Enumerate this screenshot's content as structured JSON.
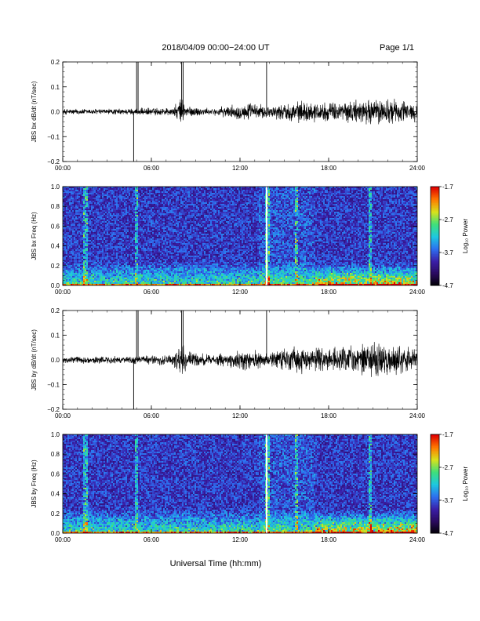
{
  "header": {
    "title": "2018/04/09   00:00−24:00 UT",
    "page": "Page 1/1"
  },
  "xaxis_label": "Universal Time (hh:mm)",
  "colors": {
    "trace": "#000000",
    "gap_line": "#ffffff",
    "colormap": [
      "#000000",
      "#2a0a5e",
      "#3a1fa8",
      "#2d6ff0",
      "#1ec8e0",
      "#3fe07a",
      "#d8e21c",
      "#ff7a00",
      "#e00000"
    ]
  },
  "colorbar": {
    "label": "Log₁₀ Power",
    "ticks": [
      "-1.7",
      "-2.7",
      "-3.7",
      "-4.7"
    ],
    "range": [
      -4.7,
      -1.7
    ]
  },
  "chart_data": [
    {
      "type": "line",
      "ylabel": "JBS bx dB/dt (nT/sec)",
      "ylim": [
        -0.2,
        0.2
      ],
      "yticks": [
        "0.2",
        "0.1",
        "0.0",
        "−0.1",
        "−0.2"
      ],
      "xlim": [
        0,
        24
      ],
      "xticks": [
        "00:00",
        "06:00",
        "12:00",
        "18:00",
        "24:00"
      ],
      "spikes_hours": [
        4.8,
        5.0,
        5.1,
        8.05,
        8.15,
        13.8
      ],
      "envelope": {
        "hours": [
          0,
          4,
          7.5,
          8,
          8.5,
          10,
          12.5,
          14,
          16,
          18,
          20,
          22,
          24
        ],
        "amplitude": [
          0.01,
          0.01,
          0.015,
          0.045,
          0.02,
          0.01,
          0.03,
          0.02,
          0.035,
          0.03,
          0.04,
          0.045,
          0.03
        ]
      }
    },
    {
      "type": "heatmap",
      "ylabel": "JBS bx Freq (Hz)",
      "ylim": [
        0.0,
        1.0
      ],
      "yticks": [
        "1.0",
        "0.8",
        "0.6",
        "0.4",
        "0.2",
        "0.0"
      ],
      "xlim": [
        0,
        24
      ],
      "xticks": [
        "00:00",
        "06:00",
        "12:00",
        "18:00",
        "24:00"
      ],
      "vertical_lines_hours": [
        1.5,
        4.9,
        13.8,
        15.8,
        20.8
      ],
      "gap_hour": 13.8
    },
    {
      "type": "line",
      "ylabel": "JBS by dB/dt (nT/sec)",
      "ylim": [
        -0.2,
        0.2
      ],
      "yticks": [
        "0.2",
        "0.1",
        "0.0",
        "−0.1",
        "−0.2"
      ],
      "xlim": [
        0,
        24
      ],
      "xticks": [
        "00:00",
        "06:00",
        "12:00",
        "18:00",
        "24:00"
      ],
      "spikes_hours": [
        4.8,
        5.0,
        5.1,
        8.05,
        8.15,
        13.8
      ],
      "envelope": {
        "hours": [
          0,
          4,
          7.5,
          8,
          8.5,
          10,
          12.5,
          14,
          16,
          18,
          20,
          22,
          24
        ],
        "amplitude": [
          0.012,
          0.012,
          0.02,
          0.06,
          0.03,
          0.015,
          0.035,
          0.025,
          0.045,
          0.04,
          0.05,
          0.06,
          0.035
        ]
      }
    },
    {
      "type": "heatmap",
      "ylabel": "JBS by Freq (Hz)",
      "ylim": [
        0.0,
        1.0
      ],
      "yticks": [
        "1.0",
        "0.8",
        "0.6",
        "0.4",
        "0.2",
        "0.0"
      ],
      "xlim": [
        0,
        24
      ],
      "xticks": [
        "00:00",
        "06:00",
        "12:00",
        "18:00",
        "24:00"
      ],
      "vertical_lines_hours": [
        1.5,
        4.9,
        13.8,
        15.8,
        20.8
      ],
      "gap_hour": 13.8
    }
  ]
}
